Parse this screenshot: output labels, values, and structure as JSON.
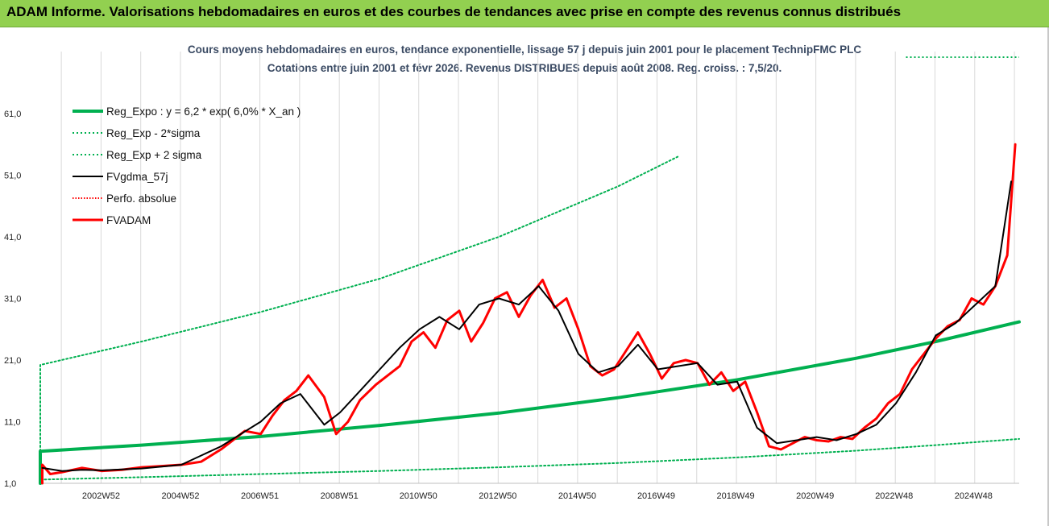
{
  "banner": {
    "title": "ADAM Informe. Valorisations hebdomadaires en euros et des courbes de tendances avec prise en compte des revenus connus distribués"
  },
  "chart_data": {
    "type": "line",
    "title": "Cours moyens hebdomadaires en euros, tendance exponentielle, lissage 57 j depuis juin 2001 pour le placement TechnipFMC PLC",
    "subtitle": "Cotations entre juin 2001 et févr 2026. Revenus DISTRIBUES depuis août 2008. Reg. croiss. : 7,5/20.",
    "xlabel": "",
    "ylabel": "",
    "x_range": [
      2001.45,
      2026.1
    ],
    "ylim": [
      1,
      61
    ],
    "y_ticks": [
      "1,0",
      "11,0",
      "21,0",
      "31,0",
      "41,0",
      "51,0",
      "61,0"
    ],
    "y_tick_values": [
      1,
      11,
      21,
      31,
      41,
      51,
      61
    ],
    "x_ticks": [
      "2002W52",
      "2004W52",
      "2006W51",
      "2008W51",
      "2010W50",
      "2012W50",
      "2014W50",
      "2016W49",
      "2018W49",
      "2020W49",
      "2022W48",
      "2024W48"
    ],
    "x_tick_values": [
      2002.98,
      2004.98,
      2006.98,
      2008.98,
      2010.97,
      2012.97,
      2014.97,
      2016.96,
      2018.96,
      2020.96,
      2022.95,
      2024.95
    ],
    "grid": "vertical",
    "legend_position": "top-left",
    "colors": {
      "reg_expo": "#00b050",
      "sigma": "#00b050",
      "fvgdma": "#000000",
      "perfo": "#ff0000",
      "fvadam": "#ff0000"
    },
    "series": [
      {
        "name": "Reg_Expo : y = 6,2 * exp( 6,0% *  X_an )",
        "style": "solid-thick",
        "x": [
          2001.45,
          2004,
          2007,
          2010,
          2013,
          2016,
          2019,
          2022,
          2024,
          2026.1
        ],
        "y": [
          6.2,
          7.2,
          8.6,
          10.4,
          12.4,
          14.9,
          17.8,
          21.3,
          24.0,
          27.2
        ]
      },
      {
        "name": "Reg_Exp - 2*sigma",
        "style": "dotted",
        "x": [
          2001.45,
          2004,
          2007,
          2010,
          2013,
          2016,
          2019,
          2022,
          2024,
          2026.1
        ],
        "y": [
          1.6,
          2.0,
          2.5,
          3.0,
          3.6,
          4.3,
          5.2,
          6.3,
          7.2,
          8.2
        ]
      },
      {
        "name": "Reg_Exp + 2 sigma",
        "style": "dotted",
        "x": [
          2001.45,
          2004,
          2007,
          2010,
          2013,
          2016,
          2017.5
        ],
        "y": [
          20.2,
          24.0,
          28.8,
          34.2,
          41.0,
          49.2,
          54.0
        ],
        "offchart_marker_y": 67
      },
      {
        "name": "FVgdma_57j",
        "style": "solid",
        "x": [
          2001.5,
          2002,
          2002.5,
          2003,
          2004,
          2005,
          2006,
          2006.5,
          2007,
          2007.5,
          2008,
          2008.6,
          2009,
          2009.5,
          2010,
          2010.5,
          2011,
          2011.5,
          2012,
          2012.5,
          2013,
          2013.5,
          2014,
          2014.5,
          2015,
          2015.5,
          2016,
          2016.5,
          2017,
          2017.5,
          2018,
          2018.5,
          2019,
          2019.5,
          2020,
          2020.5,
          2021,
          2021.5,
          2022,
          2022.5,
          2023,
          2023.5,
          2024,
          2024.5,
          2025,
          2025.5,
          2025.9
        ],
        "y": [
          3.5,
          3.0,
          3.2,
          3.1,
          3.4,
          4.0,
          7.0,
          9.0,
          11.0,
          14.0,
          15.5,
          10.5,
          12.5,
          16.0,
          19.5,
          23.0,
          26.0,
          28.0,
          26.0,
          30.0,
          31.0,
          30.0,
          33.0,
          29.0,
          22.0,
          19.0,
          20.0,
          23.5,
          19.5,
          20.0,
          20.5,
          17.0,
          17.5,
          10.0,
          7.5,
          8.0,
          8.5,
          8.0,
          9.0,
          10.5,
          14.0,
          19.0,
          25.0,
          27.0,
          30.0,
          33.0,
          50.0
        ]
      },
      {
        "name": "Perfo. absolue",
        "style": "dotted",
        "x": [],
        "y": []
      },
      {
        "name": "FVADAM",
        "style": "solid-thick",
        "x": [
          2001.5,
          2001.7,
          2002,
          2002.5,
          2003,
          2003.5,
          2004,
          2004.5,
          2005,
          2005.5,
          2006,
          2006.3,
          2006.6,
          2007,
          2007.3,
          2007.6,
          2007.9,
          2008.2,
          2008.6,
          2008.9,
          2009.2,
          2009.5,
          2009.9,
          2010.2,
          2010.5,
          2010.8,
          2011.1,
          2011.4,
          2011.7,
          2012.0,
          2012.3,
          2012.6,
          2012.9,
          2013.2,
          2013.5,
          2013.8,
          2014.1,
          2014.4,
          2014.7,
          2015.0,
          2015.3,
          2015.6,
          2015.9,
          2016.2,
          2016.5,
          2016.8,
          2017.1,
          2017.4,
          2017.7,
          2018.0,
          2018.3,
          2018.6,
          2018.9,
          2019.2,
          2019.5,
          2019.8,
          2020.1,
          2020.4,
          2020.7,
          2021.0,
          2021.3,
          2021.6,
          2021.9,
          2022.2,
          2022.5,
          2022.8,
          2023.1,
          2023.4,
          2023.7,
          2024.0,
          2024.3,
          2024.6,
          2024.9,
          2025.2,
          2025.5,
          2025.8,
          2026.0
        ],
        "y": [
          4.0,
          2.5,
          2.8,
          3.5,
          3.0,
          3.2,
          3.6,
          3.8,
          4.0,
          4.5,
          6.5,
          8.0,
          9.5,
          9.0,
          12.0,
          14.5,
          16.0,
          18.5,
          15.0,
          9.0,
          11.0,
          14.5,
          17.0,
          18.5,
          20.0,
          24.0,
          25.5,
          23.0,
          27.5,
          29.0,
          24.0,
          27.0,
          31.0,
          32.0,
          28.0,
          31.5,
          34.0,
          29.5,
          31.0,
          26.0,
          20.0,
          18.5,
          19.5,
          22.5,
          25.5,
          22.0,
          18.0,
          20.5,
          21.0,
          20.5,
          17.0,
          19.0,
          16.0,
          17.5,
          12.5,
          7.0,
          6.5,
          7.5,
          8.5,
          8.0,
          7.8,
          8.5,
          8.2,
          10.0,
          11.5,
          14.0,
          15.5,
          19.5,
          22.0,
          24.5,
          26.5,
          27.5,
          31.0,
          30.0,
          33.0,
          38.0,
          56.0
        ]
      }
    ]
  }
}
